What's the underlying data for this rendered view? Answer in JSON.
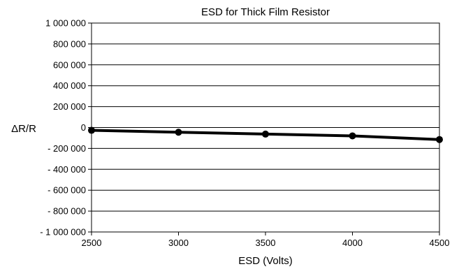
{
  "chart_data": {
    "type": "line",
    "title": "ESD for Thick Film Resistor",
    "xlabel": "ESD (Volts)",
    "ylabel": "ΔR/R",
    "xlim": [
      2500,
      4500
    ],
    "ylim": [
      -1000000,
      1000000
    ],
    "x_ticks": [
      2500,
      3000,
      3500,
      4000,
      4500
    ],
    "x_tick_labels": [
      "2500",
      "3000",
      "3500",
      "4000",
      "4500"
    ],
    "y_ticks": [
      1000000,
      800000,
      600000,
      400000,
      200000,
      0,
      -200000,
      -400000,
      -600000,
      -800000,
      -1000000
    ],
    "y_tick_labels": [
      "1 000 000",
      "800 000",
      "600 000",
      "400 000",
      "200 000",
      "0",
      "- 200 000",
      "- 400 000",
      "- 600 000",
      "- 800 000",
      "- 1 000 000"
    ],
    "grid": "horizontal",
    "legend": "none",
    "series": [
      {
        "color": "#000000",
        "x": [
          2500,
          3000,
          3500,
          4000,
          4500
        ],
        "y": [
          -27000,
          -45000,
          -63000,
          -80000,
          -115000
        ]
      }
    ]
  }
}
